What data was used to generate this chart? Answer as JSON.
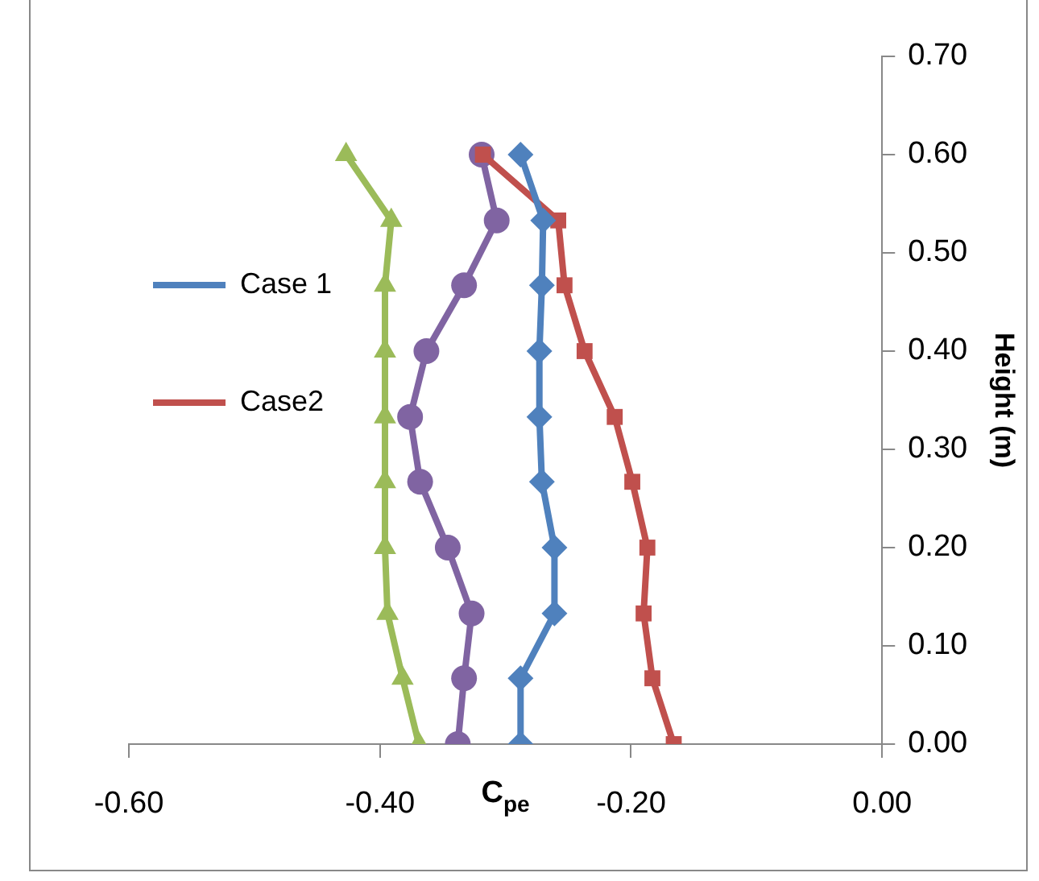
{
  "chart_data": {
    "type": "line",
    "xlabel": "C$_{pe}$",
    "ylabel": "Height (m)",
    "xlim": [
      -0.6,
      0
    ],
    "ylim": [
      0,
      0.7
    ],
    "xticks": [
      {
        "value": -0.6,
        "label": "-0.60"
      },
      {
        "value": -0.4,
        "label": "-0.40"
      },
      {
        "value": -0.2,
        "label": "-0.20"
      },
      {
        "value": 0,
        "label": "0.00"
      }
    ],
    "yticks": [
      {
        "value": 0,
        "label": "0.00"
      },
      {
        "value": 0.1,
        "label": "0.10"
      },
      {
        "value": 0.2,
        "label": "0.20"
      },
      {
        "value": 0.3,
        "label": "0.30"
      },
      {
        "value": 0.4,
        "label": "0.40"
      },
      {
        "value": 0.5,
        "label": "0.50"
      },
      {
        "value": 0.6,
        "label": "0.60"
      },
      {
        "value": 0.7,
        "label": "0.70"
      }
    ],
    "grid": false,
    "legend": "left",
    "series": [
      {
        "name": "Case 1",
        "color": "#4f81bd",
        "marker": "diamond",
        "x": [
          -0.288,
          -0.288,
          -0.261,
          -0.261,
          -0.271,
          -0.273,
          -0.273,
          -0.271,
          -0.27,
          -0.288
        ],
        "values": [
          0,
          0.067,
          0.133,
          0.2,
          0.267,
          0.333,
          0.4,
          0.467,
          0.533,
          0.6
        ]
      },
      {
        "name": "Case2",
        "color": "#c0504d",
        "marker": "square",
        "x": [
          -0.166,
          -0.183,
          -0.19,
          -0.187,
          -0.199,
          -0.213,
          -0.237,
          -0.253,
          -0.258,
          -0.318
        ],
        "values": [
          0,
          0.067,
          0.133,
          0.2,
          0.267,
          0.333,
          0.4,
          0.467,
          0.533,
          0.6
        ]
      },
      {
        "color": "#9bbb59",
        "marker": "triangle",
        "x": [
          -0.369,
          -0.382,
          -0.394,
          -0.396,
          -0.396,
          -0.396,
          -0.396,
          -0.396,
          -0.391,
          -0.427
        ],
        "values": [
          0,
          0.067,
          0.133,
          0.2,
          0.267,
          0.333,
          0.4,
          0.467,
          0.533,
          0.6
        ]
      },
      {
        "color": "#8064a2",
        "marker": "circle",
        "x": [
          -0.338,
          -0.333,
          -0.327,
          -0.346,
          -0.368,
          -0.376,
          -0.363,
          -0.333,
          -0.307,
          -0.319
        ],
        "values": [
          0,
          0.067,
          0.133,
          0.2,
          0.267,
          0.333,
          0.4,
          0.467,
          0.533,
          0.6
        ]
      }
    ]
  }
}
